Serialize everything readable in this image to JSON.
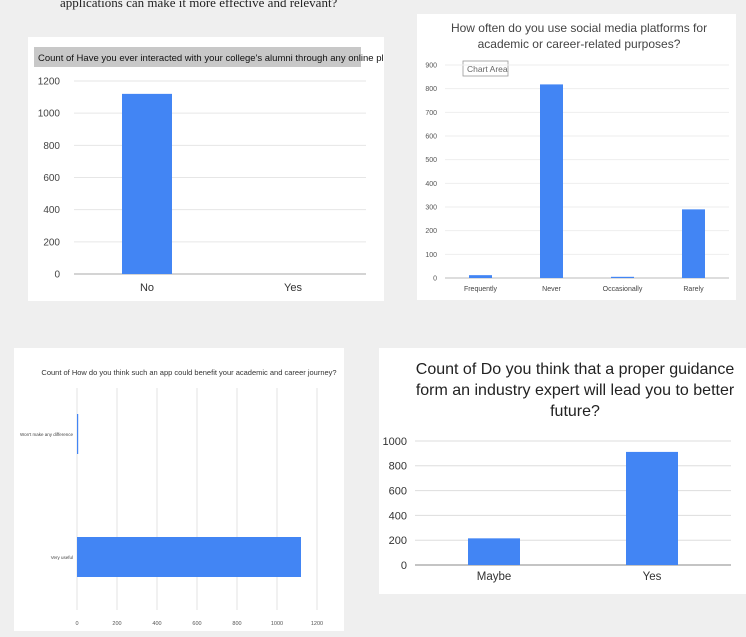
{
  "top_text": "applications can make it more effective and relevant?",
  "chart_data": [
    {
      "type": "bar",
      "title": "Count of Have you ever interacted with your college's alumni through any online platform?",
      "xlabel": "",
      "ylabel": "",
      "categories": [
        "No",
        "Yes"
      ],
      "values": [
        1120,
        0
      ],
      "ylim": [
        0,
        1200
      ],
      "yticks": [
        "0",
        "200",
        "400",
        "600",
        "800",
        "1000",
        "1200"
      ],
      "grid": true,
      "color": "#4285f4"
    },
    {
      "type": "bar",
      "title": "How often do you use social media platforms for academic or career-related purposes?",
      "tooltip": "Chart Area",
      "xlabel": "",
      "ylabel": "",
      "categories": [
        "Frequently",
        "Never",
        "Occasionally",
        "Rarely"
      ],
      "values": [
        12,
        818,
        5,
        290
      ],
      "ylim": [
        0,
        900
      ],
      "yticks": [
        "0",
        "100",
        "200",
        "300",
        "400",
        "500",
        "600",
        "700",
        "800",
        "900"
      ],
      "grid": true,
      "color": "#4285f4"
    },
    {
      "type": "bar",
      "orientation": "horizontal",
      "title": "Count of How do you think such an app could benefit your academic and career journey?",
      "xlabel": "",
      "ylabel": "",
      "categories": [
        "Won't make any difference",
        "Very useful"
      ],
      "values": [
        3,
        1120
      ],
      "xlim": [
        0,
        1200
      ],
      "xticks": [
        "0",
        "200",
        "400",
        "600",
        "800",
        "1000",
        "1200"
      ],
      "grid": true,
      "color": "#4285f4"
    },
    {
      "type": "bar",
      "title": "Count of Do you think that a proper guidance form an industry expert will lead you to better future?",
      "title_lines": [
        "Count of Do you think that a proper guidance",
        "form an industry expert will lead you to better",
        "future?"
      ],
      "xlabel": "",
      "ylabel": "",
      "categories": [
        "Maybe",
        "Yes"
      ],
      "values": [
        215,
        912
      ],
      "ylim": [
        0,
        1000
      ],
      "yticks": [
        "0",
        "200",
        "400",
        "600",
        "800",
        "1000"
      ],
      "grid": true,
      "color": "#4285f4"
    }
  ]
}
